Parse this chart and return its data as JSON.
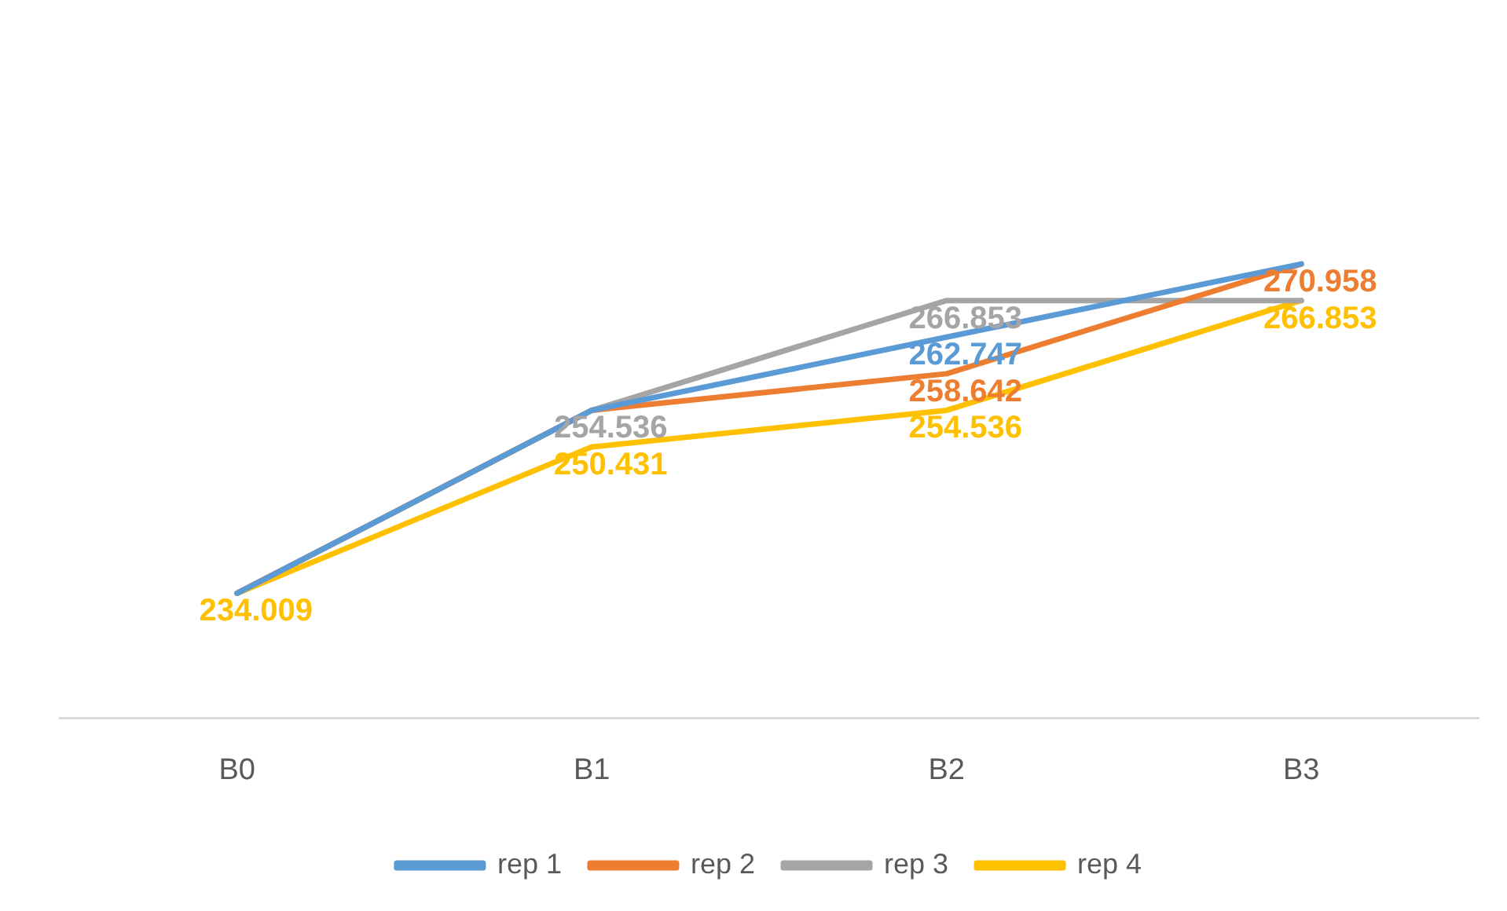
{
  "chart_data": {
    "type": "line",
    "categories": [
      "B0",
      "B1",
      "B2",
      "B3"
    ],
    "series": [
      {
        "name": "rep 1",
        "color": "#5b9bd5",
        "values": [
          234.009,
          254.536,
          262.747,
          270.958
        ],
        "value_labels": [
          null,
          null,
          "262.747",
          null
        ]
      },
      {
        "name": "rep 2",
        "color": "#ed7d31",
        "values": [
          234.009,
          254.536,
          258.642,
          270.958
        ],
        "value_labels": [
          null,
          null,
          "258.642",
          "270.958"
        ]
      },
      {
        "name": "rep 3",
        "color": "#a5a5a5",
        "values": [
          234.009,
          254.536,
          266.853,
          266.853
        ],
        "value_labels": [
          null,
          "254.536",
          "266.853",
          null
        ]
      },
      {
        "name": "rep 4",
        "color": "#ffc000",
        "values": [
          234.009,
          250.431,
          254.536,
          266.853
        ],
        "value_labels": [
          "234.009",
          "250.431",
          "254.536",
          "266.853"
        ]
      }
    ],
    "tick_labels": "x",
    "grid": false,
    "legend": "bottom",
    "marker": "none",
    "line_style": "solid"
  }
}
